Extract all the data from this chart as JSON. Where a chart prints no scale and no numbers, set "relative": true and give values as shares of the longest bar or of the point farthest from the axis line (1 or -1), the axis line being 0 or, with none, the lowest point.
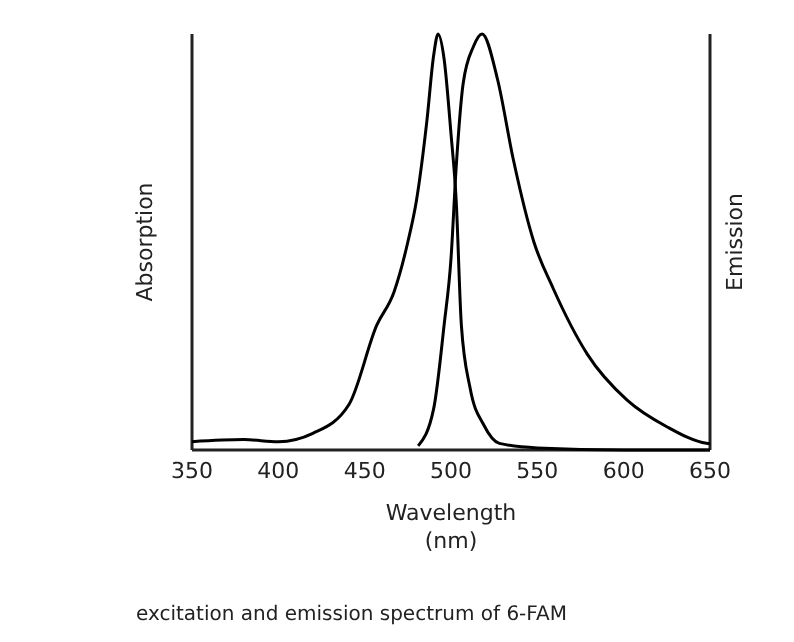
{
  "chart_data": {
    "type": "line",
    "relative": true,
    "xlabel": "Wavelength\n(nm)",
    "ylabel": "Absorption",
    "y2label": "Emission",
    "xlim": [
      350,
      650
    ],
    "xticks": [
      350,
      400,
      450,
      500,
      550,
      600,
      650
    ],
    "line_style": "solid",
    "marker": "none",
    "grid": false,
    "series": [
      {
        "color": "#000000",
        "x": [
          350,
          380,
          400,
          420,
          441,
          457,
          467,
          475,
          480,
          486,
          490,
          492.5,
          496,
          500,
          503,
          506,
          511,
          519,
          528,
          550,
          600,
          650
        ],
        "values": [
          0.02,
          0.025,
          0.02,
          0.04,
          0.11,
          0.3,
          0.38,
          0.5,
          0.6,
          0.79,
          0.95,
          1,
          0.94,
          0.76,
          0.6,
          0.3,
          0.15,
          0.06,
          0.016,
          0.005,
          0,
          0
        ]
      },
      {
        "color": "#000000",
        "x": [
          481,
          490,
          496,
          500,
          503,
          507,
          513,
          518,
          527,
          536,
          548,
          559,
          579,
          602,
          625,
          648,
          650
        ],
        "values": [
          0.01,
          0.1,
          0.3,
          0.46,
          0.68,
          0.88,
          0.97,
          1,
          0.89,
          0.7,
          0.5,
          0.39,
          0.23,
          0.12,
          0.056,
          0.016,
          0.015
        ]
      }
    ],
    "annotations": [
      "excitation and emission spectrum of 6-FAM"
    ]
  }
}
